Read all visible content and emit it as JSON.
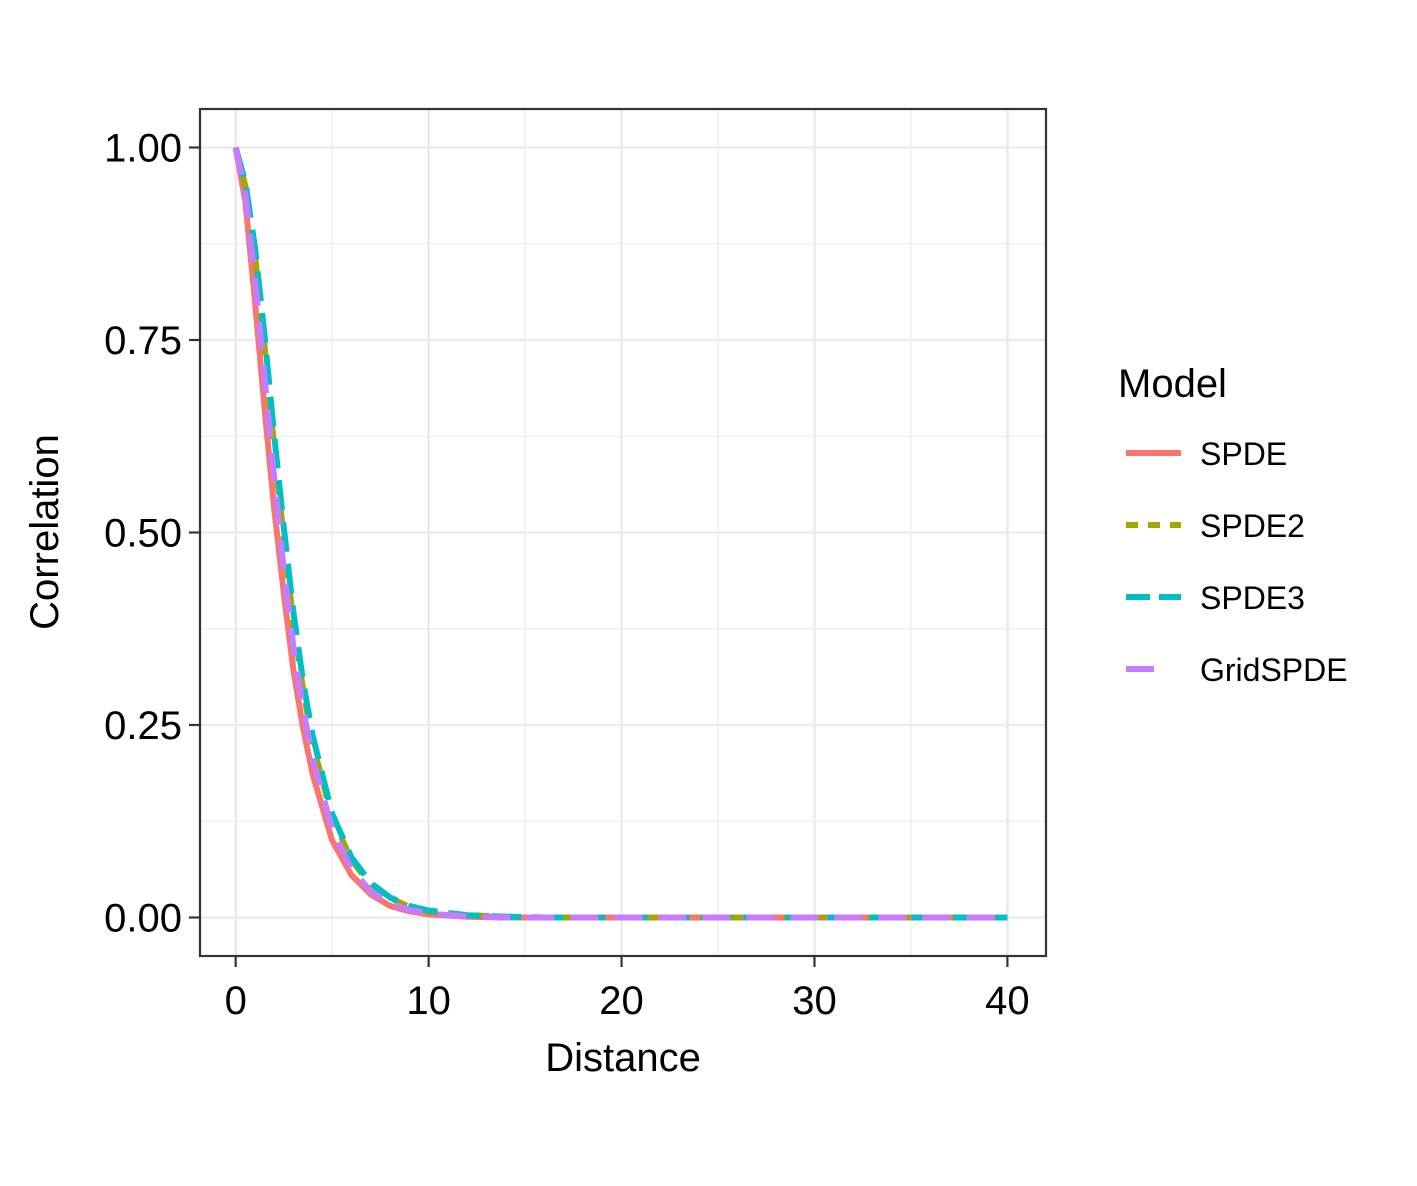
{
  "chart_data": {
    "type": "line",
    "title": "",
    "xlabel": "Distance",
    "ylabel": "Correlation",
    "xlim": [
      -1.85,
      42
    ],
    "ylim": [
      -0.05,
      1.05
    ],
    "x_ticks": [
      0,
      10,
      20,
      30,
      40
    ],
    "y_ticks": [
      0,
      0.25,
      0.5,
      0.75,
      1.0
    ],
    "x_tick_labels": [
      "0",
      "10",
      "20",
      "30",
      "40"
    ],
    "y_tick_labels": [
      "0.00",
      "0.25",
      "0.50",
      "0.75",
      "1.00"
    ],
    "grid": true,
    "legend": {
      "title": "Model",
      "position": "right"
    },
    "x": [
      0,
      0.5,
      1,
      1.5,
      2,
      2.5,
      3,
      3.5,
      4,
      5,
      6,
      7,
      8,
      9,
      10,
      12,
      14,
      16,
      20,
      25,
      30,
      35,
      40
    ],
    "series": [
      {
        "name": "SPDE",
        "color": "#F8766D",
        "dash": "solid",
        "values": [
          1.0,
          0.93,
          0.8,
          0.66,
          0.53,
          0.42,
          0.32,
          0.245,
          0.185,
          0.1,
          0.055,
          0.03,
          0.015,
          0.008,
          0.004,
          0.001,
          0.0,
          0.0,
          0.0,
          0.0,
          0.0,
          0.0,
          0.0
        ]
      },
      {
        "name": "SPDE2",
        "color": "#A3A500",
        "dash": "dashed",
        "values": [
          1.0,
          0.95,
          0.86,
          0.74,
          0.61,
          0.49,
          0.38,
          0.295,
          0.225,
          0.13,
          0.075,
          0.042,
          0.025,
          0.014,
          0.008,
          0.003,
          0.001,
          0.0,
          0.0,
          0.0,
          0.0,
          0.0,
          0.0
        ]
      },
      {
        "name": "SPDE3",
        "color": "#00BFC4",
        "dash": "longdash",
        "values": [
          1.0,
          0.955,
          0.87,
          0.755,
          0.625,
          0.505,
          0.395,
          0.305,
          0.235,
          0.135,
          0.078,
          0.045,
          0.026,
          0.015,
          0.009,
          0.003,
          0.001,
          0.0,
          0.0,
          0.0,
          0.0,
          0.0,
          0.0
        ]
      },
      {
        "name": "GridSPDE",
        "color": "#C77CFF",
        "dash": "longdash-short",
        "values": [
          1.0,
          0.94,
          0.83,
          0.7,
          0.57,
          0.45,
          0.35,
          0.27,
          0.205,
          0.115,
          0.063,
          0.034,
          0.018,
          0.01,
          0.005,
          0.0015,
          0.0,
          0.0,
          0.0,
          0.0,
          0.0,
          0.0,
          0.0
        ]
      }
    ]
  }
}
